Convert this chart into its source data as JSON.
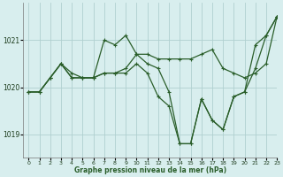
{
  "xlabel": "Graphe pression niveau de la mer (hPa)",
  "background_color": "#d8eeee",
  "grid_color": "#b0d0d0",
  "line_color": "#2a5e2a",
  "xlim": [
    -0.5,
    23
  ],
  "ylim": [
    1018.5,
    1021.8
  ],
  "yticks": [
    1019,
    1020,
    1021
  ],
  "xticks": [
    0,
    1,
    2,
    3,
    4,
    5,
    6,
    7,
    8,
    9,
    10,
    11,
    12,
    13,
    14,
    15,
    16,
    17,
    18,
    19,
    20,
    21,
    22,
    23
  ],
  "series": [
    [
      1019.9,
      1019.9,
      1020.2,
      1020.5,
      1020.2,
      1020.2,
      1020.2,
      1021.0,
      1020.9,
      1021.1,
      1020.7,
      1020.5,
      1020.4,
      1019.9,
      1018.8,
      1018.8,
      1019.75,
      1019.3,
      1019.1,
      1019.8,
      1019.9,
      1020.9,
      1021.1,
      1021.5
    ],
    [
      1019.9,
      1019.9,
      1020.2,
      1020.5,
      1020.2,
      1020.2,
      1020.2,
      1020.3,
      1020.3,
      1020.4,
      1020.7,
      1020.7,
      1020.6,
      1020.6,
      1020.6,
      1020.6,
      1020.7,
      1020.8,
      1020.4,
      1020.3,
      1020.2,
      1020.3,
      1020.5,
      1021.5
    ],
    [
      1019.9,
      1019.9,
      1020.2,
      1020.5,
      1020.3,
      1020.2,
      1020.2,
      1020.3,
      1020.3,
      1020.3,
      1020.5,
      1020.3,
      1019.8,
      1019.6,
      1018.8,
      1018.8,
      1019.75,
      1019.3,
      1019.1,
      1019.8,
      1019.9,
      1020.4,
      1021.1,
      1021.5
    ]
  ]
}
